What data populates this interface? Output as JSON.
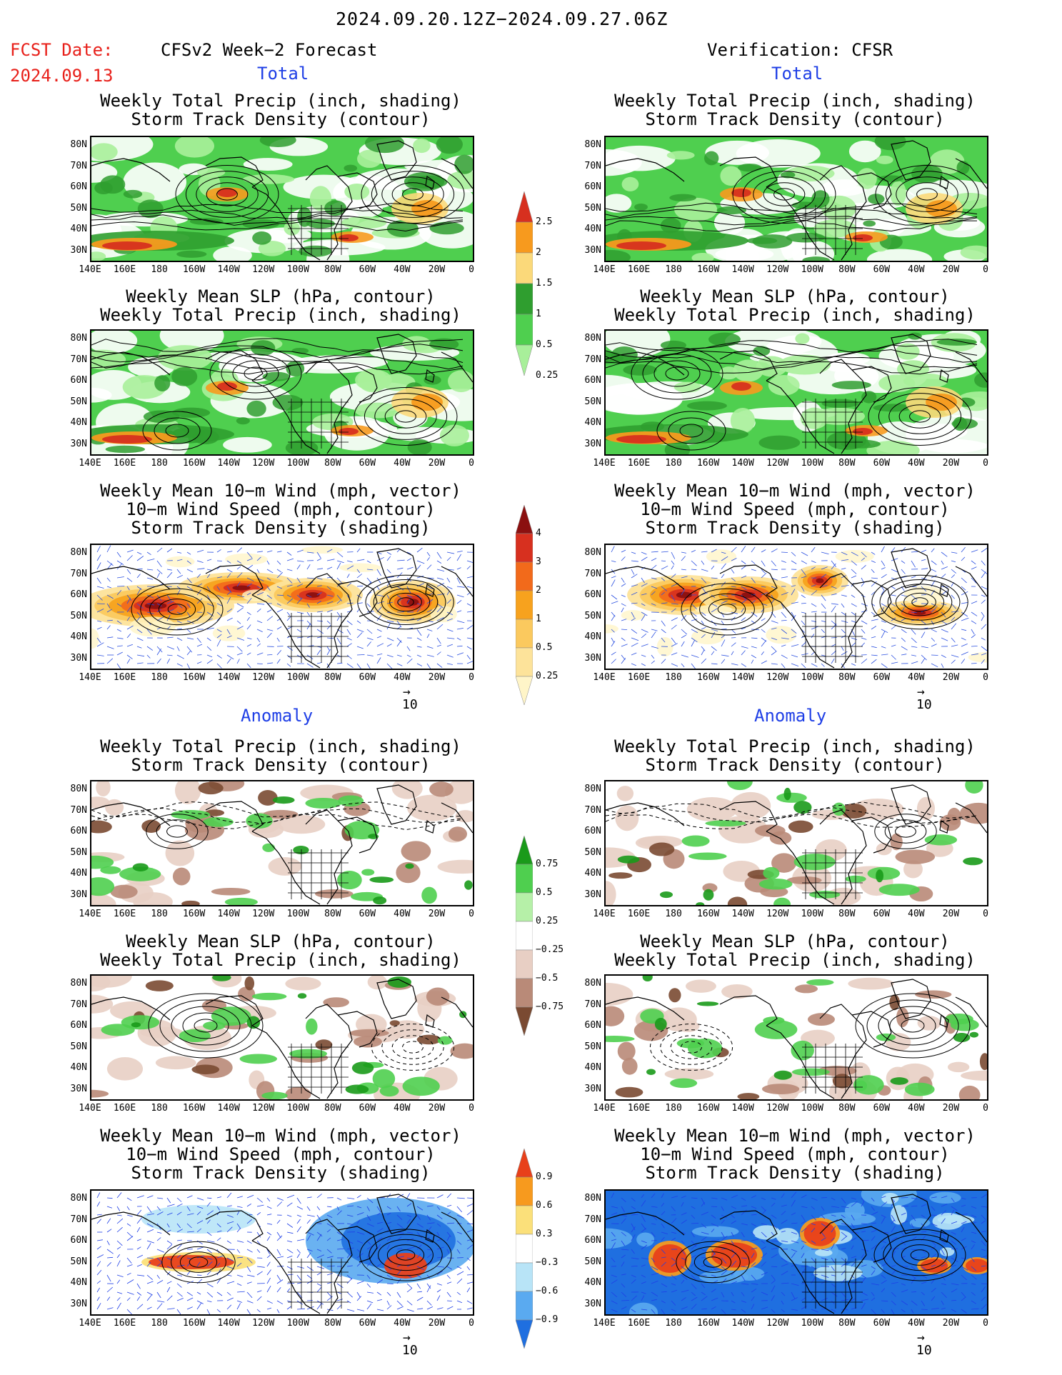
{
  "header": {
    "title": "2024.09.20.12Z−2024.09.27.06Z",
    "fcst_label": "FCST Date:",
    "fcst_date": "2024.09.13",
    "left_header": "CFSv2 Week−2 Forecast",
    "right_header": "Verification: CFSR"
  },
  "sections": {
    "total": "Total",
    "anomaly": "Anomaly"
  },
  "panel_titles": {
    "precip_storm": [
      "Weekly Total Precip (inch, shading)",
      "Storm Track Density (contour)"
    ],
    "slp_precip": [
      "Weekly Mean SLP (hPa, contour)",
      "Weekly Total Precip (inch, shading)"
    ],
    "wind_storm": [
      "Weekly Mean 10−m Wind (mph, vector)",
      "10−m Wind Speed (mph, contour)",
      "Storm Track Density (shading)"
    ]
  },
  "axes": {
    "lat_ticks": [
      "80N",
      "70N",
      "60N",
      "50N",
      "40N",
      "30N"
    ],
    "lon_ticks": [
      "140E",
      "160E",
      "180",
      "160W",
      "140W",
      "120W",
      "100W",
      "80W",
      "60W",
      "40W",
      "20W",
      "0"
    ]
  },
  "vector_ref": {
    "arrow": "→",
    "value": "10"
  },
  "colorbars": {
    "total_precip": {
      "labels": [
        "2.5",
        "2",
        "1.5",
        "1",
        "0.5",
        "0.25"
      ],
      "colors": [
        "#d7301f",
        "#f79a1e",
        "#fbd97a",
        "#2f9e2f",
        "#4fcf4f",
        "#a8ef9a"
      ]
    },
    "total_storm": {
      "labels": [
        "4",
        "3",
        "2",
        "1",
        "0.5",
        "0.25"
      ],
      "colors": [
        "#8b1010",
        "#d7301f",
        "#f26a1b",
        "#f7a21e",
        "#fbc95e",
        "#fde39a",
        "#fff5c8"
      ]
    },
    "anom_precip": {
      "labels": [
        "0.75",
        "0.5",
        "0.25",
        "−0.25",
        "−0.5",
        "−0.75"
      ],
      "colors": [
        "#1a9a1a",
        "#4fcf4f",
        "#b6f0a8",
        "#ffffff",
        "#e8cfc4",
        "#b98a78",
        "#7a4a32"
      ]
    },
    "anom_storm": {
      "labels": [
        "0.9",
        "0.6",
        "0.3",
        "−0.3",
        "−0.6",
        "−0.9"
      ],
      "colors": [
        "#e8401a",
        "#f79a1e",
        "#fbe07a",
        "#ffffff",
        "#b8e4f7",
        "#5aaaf0",
        "#1f6fe0"
      ]
    }
  },
  "colors": {
    "precip_green": "#39c439",
    "precip_red": "#e03a1c",
    "storm_red": "#c52a16",
    "storm_orange": "#f5a623",
    "wind_blue": "#2a4fe0",
    "anom_brown": "#8a5a42",
    "anom_blue": "#2c6fe0"
  }
}
